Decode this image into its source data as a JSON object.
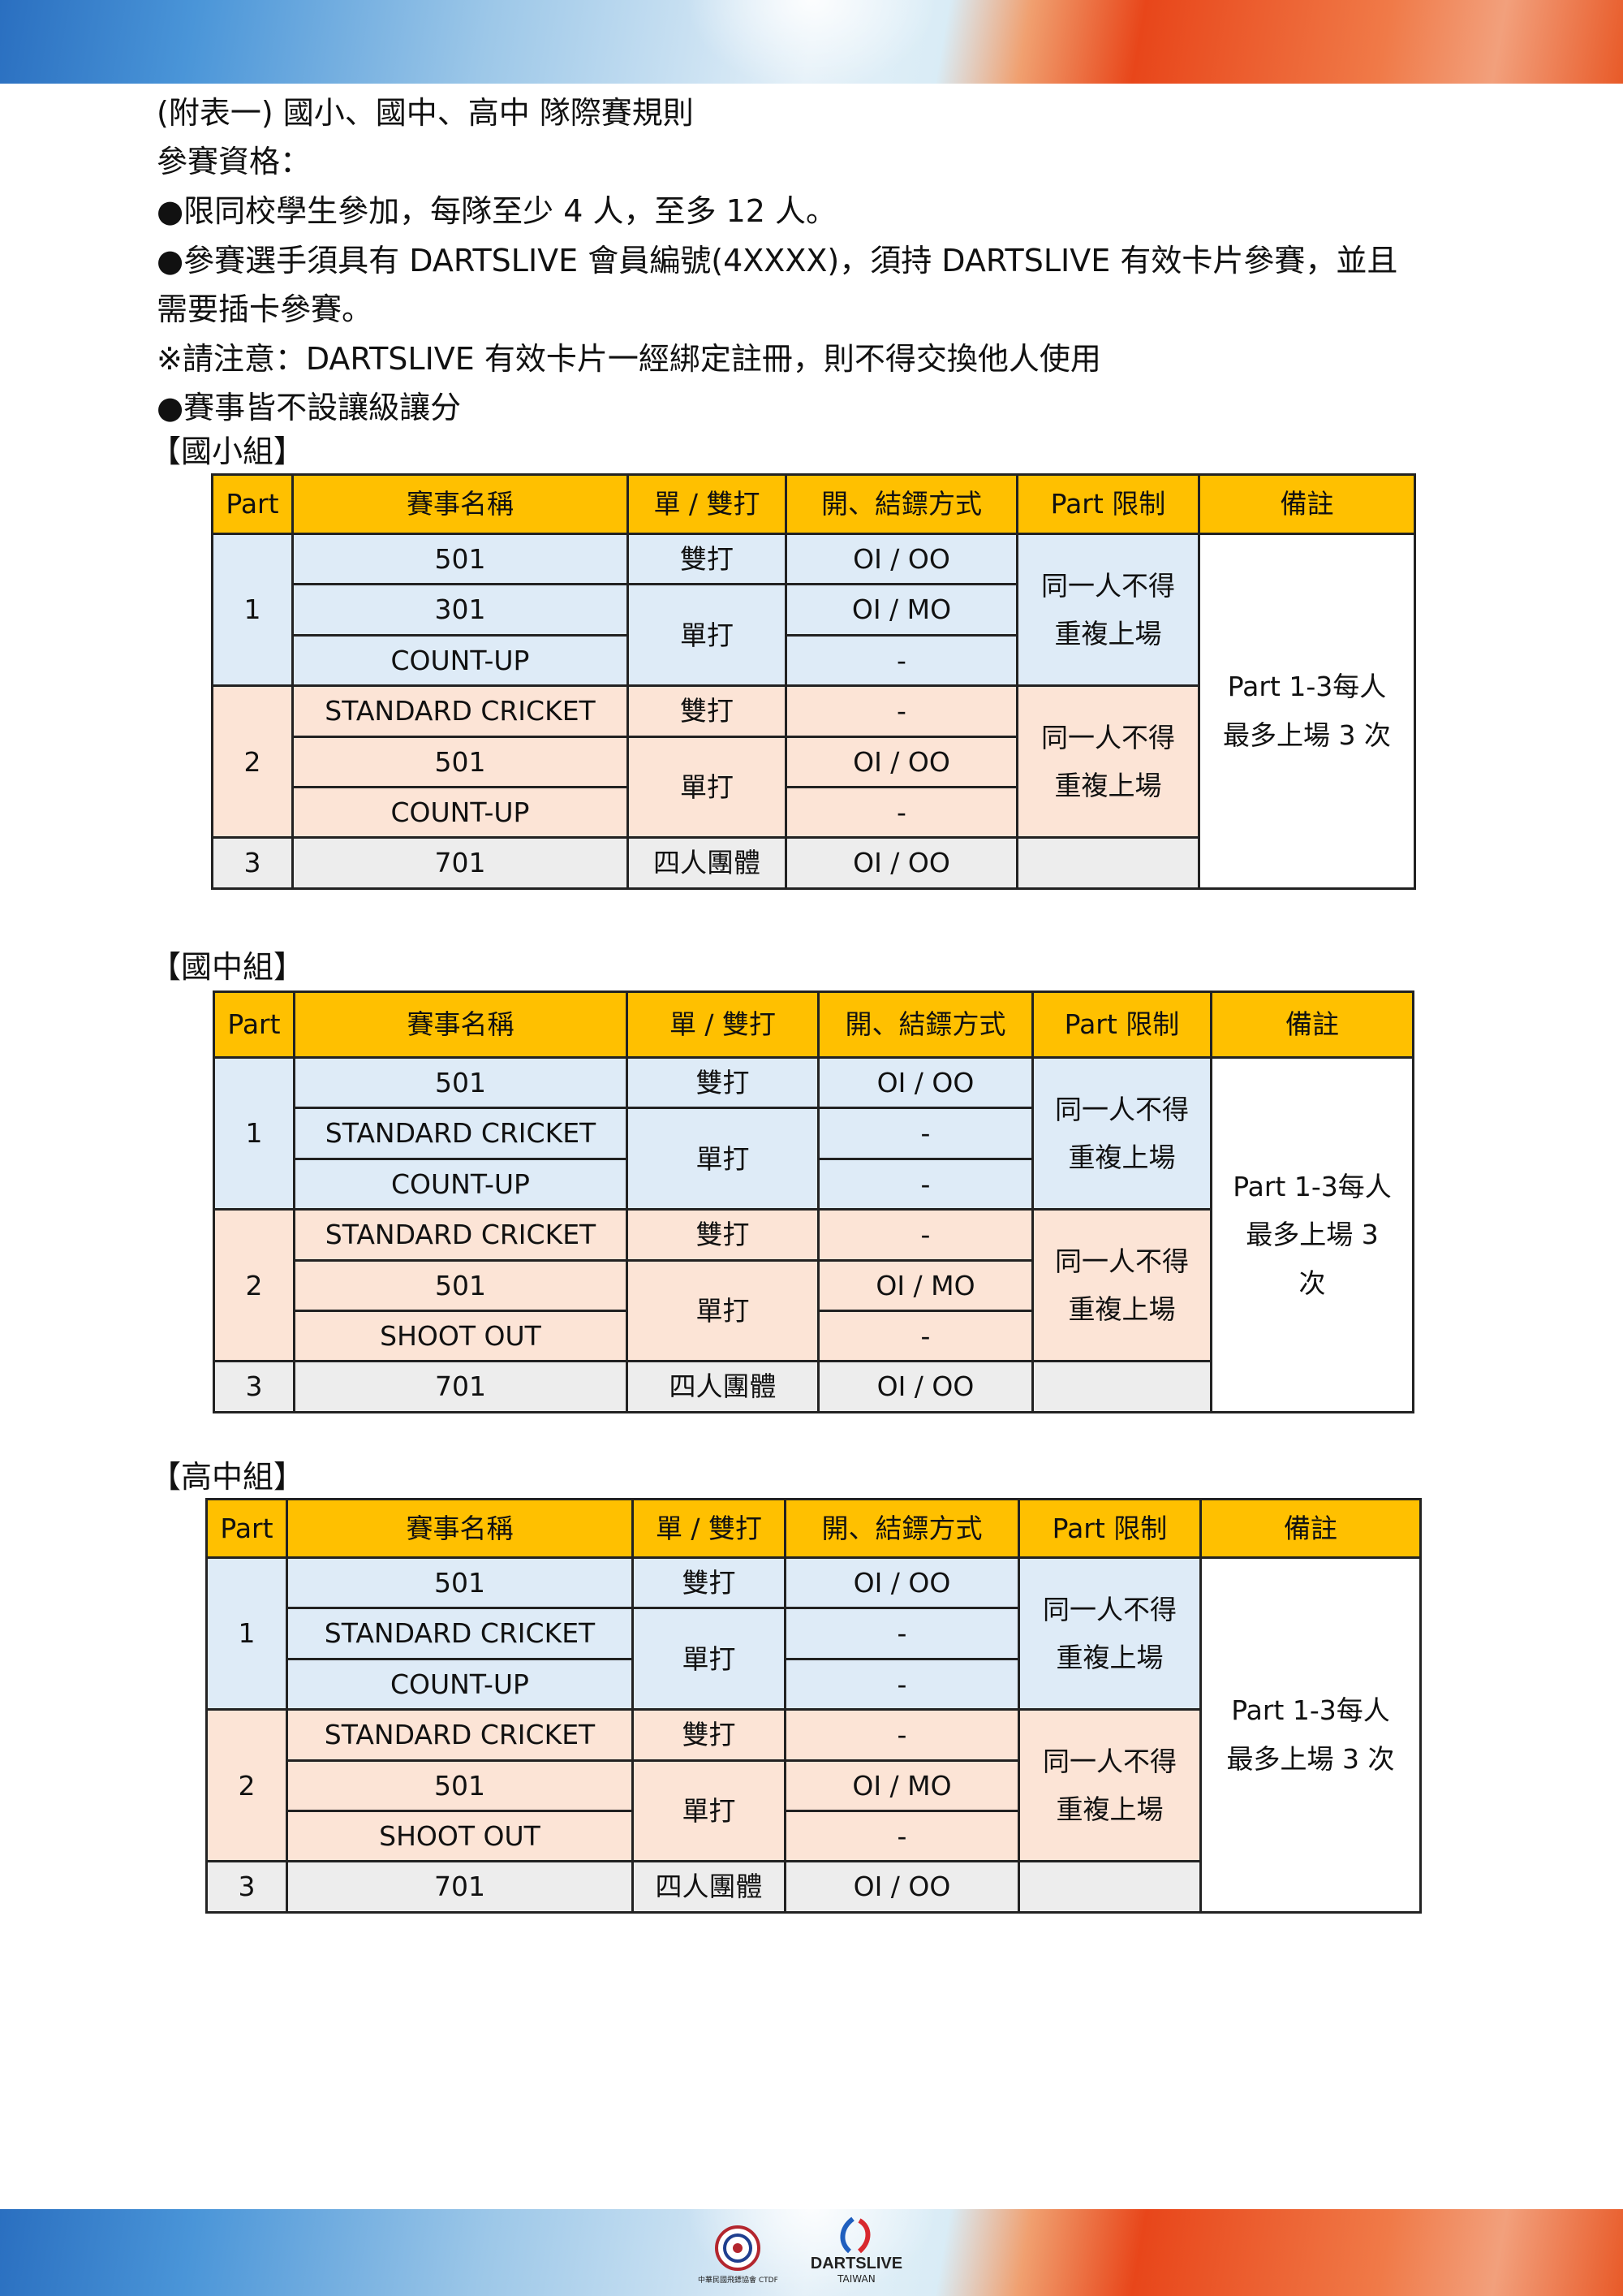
{
  "lines": [
    "(附表一) 國小、國中、高中  隊際賽規則",
    "參賽資格：",
    "●限同校學生參加，每隊至少 4 人，至多 12 人。",
    "●參賽選手須具有 DARTSLIVE 會員編號(4XXXX)，須持 DARTSLIVE 有效卡片參賽，並且",
    "需要插卡參賽。",
    "※請注意：DARTSLIVE 有效卡片一經綁定註冊，則不得交換他人使用",
    "●賽事皆不設讓級讓分"
  ],
  "colors": {
    "header": "#FFC000",
    "part1": "#DEEBF7",
    "part2": "#FCE4D6",
    "part3": "#EDEDED"
  },
  "headers": [
    "Part",
    "賽事名稱",
    "單 / 雙打",
    "開、結鏢方式",
    "Part 限制",
    "備註"
  ],
  "tables": [
    {
      "title": "【國小組】",
      "rows": [
        {
          "part": 1,
          "cells": [
            {
              "t": "1",
              "rs": 3
            },
            {
              "t": "501"
            },
            {
              "t": "雙打"
            },
            {
              "t": "OI / OO"
            },
            {
              "t": "同一人不得\n重複上場",
              "rs": 3
            },
            {
              "t": "Part 1-3每人\n最多上場 3 次",
              "rs": 7,
              "note": true
            }
          ]
        },
        {
          "part": 1,
          "cells": [
            {
              "t": "301"
            },
            {
              "t": "單打",
              "rs": 2
            },
            {
              "t": "OI / MO"
            }
          ]
        },
        {
          "part": 1,
          "cells": [
            {
              "t": "COUNT-UP"
            },
            {
              "t": "-"
            }
          ]
        },
        {
          "part": 2,
          "cells": [
            {
              "t": "2",
              "rs": 3
            },
            {
              "t": "STANDARD CRICKET"
            },
            {
              "t": "雙打"
            },
            {
              "t": "-"
            },
            {
              "t": "同一人不得\n重複上場",
              "rs": 3
            }
          ]
        },
        {
          "part": 2,
          "cells": [
            {
              "t": "501"
            },
            {
              "t": "單打",
              "rs": 2
            },
            {
              "t": "OI / OO"
            }
          ]
        },
        {
          "part": 2,
          "cells": [
            {
              "t": "COUNT-UP"
            },
            {
              "t": "-"
            }
          ]
        },
        {
          "part": 3,
          "cells": [
            {
              "t": "3"
            },
            {
              "t": "701"
            },
            {
              "t": "四人團體"
            },
            {
              "t": "OI / OO"
            },
            {
              "t": ""
            }
          ]
        }
      ]
    },
    {
      "title": "【國中組】",
      "rows": [
        {
          "part": 1,
          "cells": [
            {
              "t": "1",
              "rs": 3
            },
            {
              "t": "501"
            },
            {
              "t": "雙打"
            },
            {
              "t": "OI / OO"
            },
            {
              "t": "同一人不得\n重複上場",
              "rs": 3
            },
            {
              "t": "Part 1-3每人\n最多上場 3\n次",
              "rs": 7,
              "note": true
            }
          ]
        },
        {
          "part": 1,
          "cells": [
            {
              "t": "STANDARD CRICKET"
            },
            {
              "t": "單打",
              "rs": 2
            },
            {
              "t": "-"
            }
          ]
        },
        {
          "part": 1,
          "cells": [
            {
              "t": "COUNT-UP"
            },
            {
              "t": "-"
            }
          ]
        },
        {
          "part": 2,
          "cells": [
            {
              "t": "2",
              "rs": 3
            },
            {
              "t": "STANDARD CRICKET"
            },
            {
              "t": "雙打"
            },
            {
              "t": "-"
            },
            {
              "t": "同一人不得\n重複上場",
              "rs": 3
            }
          ]
        },
        {
          "part": 2,
          "cells": [
            {
              "t": "501"
            },
            {
              "t": "單打",
              "rs": 2
            },
            {
              "t": "OI / MO"
            }
          ]
        },
        {
          "part": 2,
          "cells": [
            {
              "t": "SHOOT OUT"
            },
            {
              "t": "-"
            }
          ]
        },
        {
          "part": 3,
          "cells": [
            {
              "t": "3"
            },
            {
              "t": "701"
            },
            {
              "t": "四人團體"
            },
            {
              "t": "OI / OO"
            },
            {
              "t": ""
            }
          ]
        }
      ]
    },
    {
      "title": "【高中組】",
      "rows": [
        {
          "part": 1,
          "cells": [
            {
              "t": "1",
              "rs": 3
            },
            {
              "t": "501"
            },
            {
              "t": "雙打"
            },
            {
              "t": "OI / OO"
            },
            {
              "t": "同一人不得\n重複上場",
              "rs": 3
            },
            {
              "t": "Part 1-3每人\n最多上場 3 次",
              "rs": 7,
              "note": true
            }
          ]
        },
        {
          "part": 1,
          "cells": [
            {
              "t": "STANDARD CRICKET"
            },
            {
              "t": "單打",
              "rs": 2
            },
            {
              "t": "-"
            }
          ]
        },
        {
          "part": 1,
          "cells": [
            {
              "t": "COUNT-UP"
            },
            {
              "t": "-"
            }
          ]
        },
        {
          "part": 2,
          "cells": [
            {
              "t": "2",
              "rs": 3
            },
            {
              "t": "STANDARD CRICKET"
            },
            {
              "t": "雙打"
            },
            {
              "t": "-"
            },
            {
              "t": "同一人不得\n重複上場",
              "rs": 3
            }
          ]
        },
        {
          "part": 2,
          "cells": [
            {
              "t": "501"
            },
            {
              "t": "單打",
              "rs": 2
            },
            {
              "t": "OI / MO"
            }
          ]
        },
        {
          "part": 2,
          "cells": [
            {
              "t": "SHOOT OUT"
            },
            {
              "t": "-"
            }
          ]
        },
        {
          "part": 3,
          "cells": [
            {
              "t": "3"
            },
            {
              "t": "701"
            },
            {
              "t": "四人團體"
            },
            {
              "t": "OI / OO"
            },
            {
              "t": ""
            }
          ]
        }
      ]
    }
  ],
  "footer": {
    "ctdf_logo": "中華民國飛鏢協會 CTDF CHINESE TAIPEI DARTS FEDERATION",
    "dartslive_logo": "DARTSLIVE",
    "dartslive_sub": "TAIWAN"
  }
}
